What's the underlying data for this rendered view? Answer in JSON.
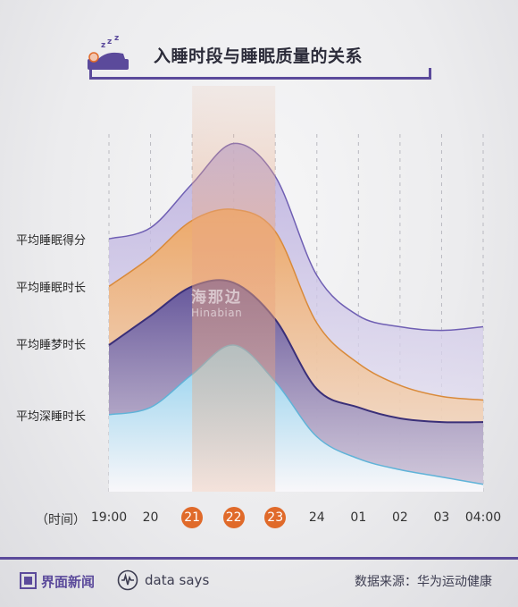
{
  "title": "入睡时段与睡眠质量的关系",
  "colors": {
    "accent": "#5b4a9b",
    "highlight": "#e06a2a",
    "score_line": "#6f5fb3",
    "duration_line": "#d98a3a",
    "dream_line": "#3a2f78",
    "deep_line": "#5fb3d8"
  },
  "axis": {
    "title": "（时间）",
    "ticks": [
      "19:00",
      "20",
      "21",
      "22",
      "23",
      "24",
      "01",
      "02",
      "03",
      "04:00"
    ],
    "highlighted": [
      "21",
      "22",
      "23"
    ]
  },
  "series_labels": {
    "score": "平均睡眠得分",
    "duration": "平均睡眠时长",
    "dream": "平均睡梦时长",
    "deep": "平均深睡时长"
  },
  "watermark": {
    "cn": "海那边",
    "en": "Hinabian"
  },
  "footer": {
    "brand": "界面新闻",
    "datasays": "data says",
    "source": "数据来源：华为运动健康"
  },
  "chart_data": {
    "type": "area",
    "note_units": "unlabeled relative level (0-100), no value axis shown",
    "x": [
      "19:00",
      "20",
      "21",
      "22",
      "23",
      "24",
      "01",
      "02",
      "03",
      "04:00"
    ],
    "ylim": [
      0,
      100
    ],
    "grid": "vertical dashed",
    "highlight_range": [
      "21",
      "23"
    ],
    "series": [
      {
        "name": "平均睡眠得分",
        "values": [
          69,
          72,
          84,
          95,
          86,
          59,
          48,
          45,
          44,
          45
        ]
      },
      {
        "name": "平均睡眠时长",
        "values": [
          56,
          64,
          74,
          77,
          71,
          46,
          35,
          29,
          26,
          25
        ]
      },
      {
        "name": "平均睡梦时长",
        "values": [
          40,
          48,
          56,
          57,
          47,
          28,
          23,
          20,
          19,
          19
        ]
      },
      {
        "name": "平均深睡时长",
        "values": [
          21,
          23,
          32,
          40,
          30,
          15,
          9,
          6,
          4,
          2
        ]
      }
    ]
  }
}
